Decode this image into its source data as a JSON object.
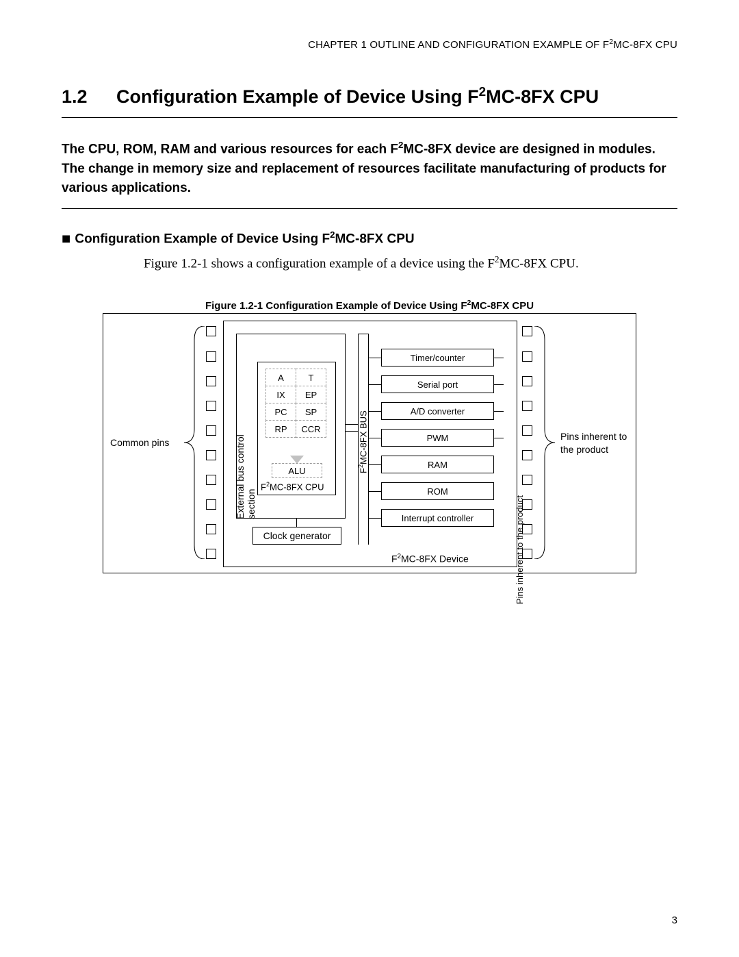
{
  "chapter": {
    "pre": "CHAPTER 1  OUTLINE AND CONFIGURATION EXAMPLE OF F",
    "sup": "2",
    "post": "MC-8FX CPU"
  },
  "section": {
    "num": "1.2",
    "pre": "Configuration Example of Device Using F",
    "sup": "2",
    "post": "MC-8FX CPU"
  },
  "intro": {
    "pre": "The CPU, ROM, RAM and various resources for each F",
    "sup": "2",
    "post": "MC-8FX device are designed in modules. The change in memory size and replacement of resources facilitate manufacturing of products for various applications."
  },
  "subhead": {
    "mark": "■ ",
    "pre": "Configuration Example of Device Using F",
    "sup": "2",
    "post": "MC-8FX CPU"
  },
  "body": {
    "pre": "Figure 1.2-1 shows a configuration example of a device using the F",
    "sup": "2",
    "post": "MC-8FX CPU."
  },
  "figcap": {
    "pre": "Figure 1.2-1  Configuration Example of Device Using F",
    "sup": "2",
    "post": "MC-8FX CPU"
  },
  "diagram": {
    "pins_per_side": 10,
    "common_pins": "Common pins",
    "inherent_pins": "Pins inherent to the product",
    "device_label_pre": "F",
    "device_label_sup": "2",
    "device_label_post": "MC-8FX Device",
    "ext_bus": "External bus control section",
    "cpu_label_pre": "F",
    "cpu_label_sup": "2",
    "cpu_label_post": "MC-8FX CPU",
    "regs": [
      [
        "A",
        "T"
      ],
      [
        "IX",
        "EP"
      ],
      [
        "PC",
        "SP"
      ],
      [
        "RP",
        "CCR"
      ]
    ],
    "alu": "ALU",
    "clock": "Clock generator",
    "bus_label_pre": "F",
    "bus_label_sup": "2",
    "bus_label_post": "MC-8FX BUS",
    "periphs": [
      "Timer/counter",
      "Serial port",
      "A/D converter",
      "PWM",
      "RAM",
      "ROM",
      "Interrupt controller"
    ],
    "pins_prod": "Pins inherent to the product"
  },
  "pagenum": "3",
  "colors": {
    "border": "#000000",
    "dashed": "#999999",
    "bg": "#ffffff"
  }
}
